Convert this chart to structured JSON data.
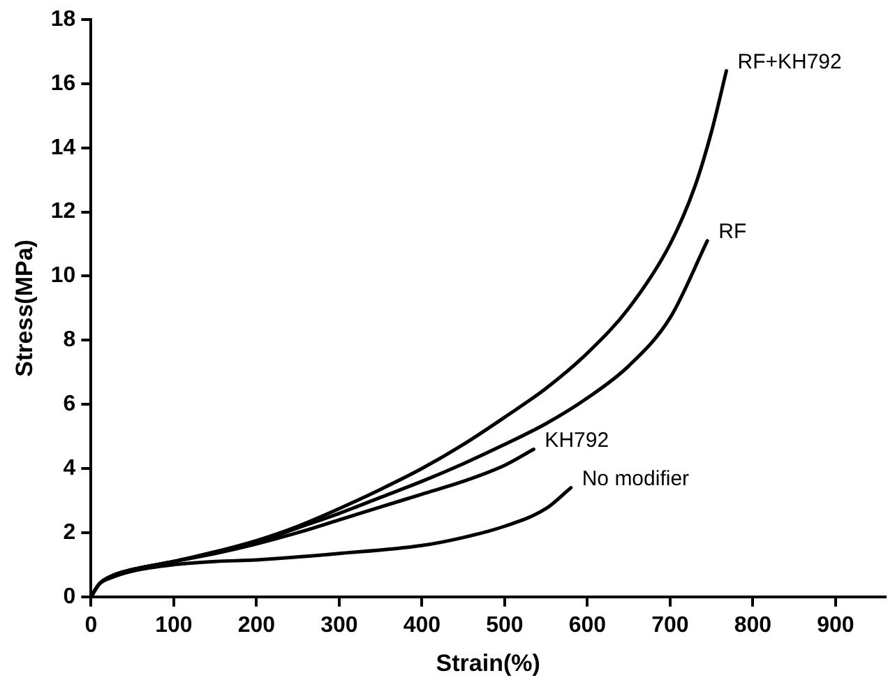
{
  "chart_data": {
    "type": "line",
    "xlabel": "Strain(%)",
    "ylabel": "Stress(MPa)",
    "xlim": [
      0,
      960
    ],
    "xticks": [
      0,
      100,
      200,
      300,
      400,
      500,
      600,
      700,
      800,
      900
    ],
    "ylim": [
      0,
      18
    ],
    "yticks": [
      0,
      2,
      4,
      6,
      8,
      10,
      12,
      14,
      16,
      18
    ],
    "grid": false,
    "legend": false,
    "marker": "none",
    "line_style": "solid",
    "series": [
      {
        "name": "RF+KH792",
        "color": "#000000",
        "x": [
          0,
          10,
          25,
          50,
          100,
          150,
          200,
          250,
          300,
          350,
          400,
          450,
          500,
          550,
          600,
          650,
          700,
          730,
          750,
          768
        ],
        "values": [
          0,
          0.4,
          0.65,
          0.85,
          1.1,
          1.4,
          1.75,
          2.2,
          2.75,
          3.35,
          4.0,
          4.75,
          5.6,
          6.5,
          7.6,
          9.0,
          11.0,
          12.8,
          14.5,
          16.4
        ]
      },
      {
        "name": "RF",
        "color": "#000000",
        "x": [
          0,
          10,
          25,
          50,
          100,
          150,
          200,
          250,
          300,
          350,
          400,
          450,
          500,
          550,
          600,
          650,
          700,
          745
        ],
        "values": [
          0,
          0.4,
          0.65,
          0.85,
          1.1,
          1.4,
          1.7,
          2.15,
          2.6,
          3.1,
          3.6,
          4.15,
          4.75,
          5.4,
          6.2,
          7.2,
          8.7,
          11.1
        ]
      },
      {
        "name": "KH792",
        "color": "#000000",
        "x": [
          0,
          10,
          25,
          50,
          100,
          150,
          200,
          250,
          300,
          350,
          400,
          450,
          500,
          535
        ],
        "values": [
          0,
          0.4,
          0.65,
          0.85,
          1.1,
          1.35,
          1.65,
          2.0,
          2.4,
          2.8,
          3.2,
          3.6,
          4.1,
          4.6
        ]
      },
      {
        "name": "No modifier",
        "color": "#000000",
        "x": [
          0,
          10,
          25,
          50,
          100,
          150,
          200,
          300,
          400,
          450,
          500,
          550,
          580
        ],
        "values": [
          0,
          0.4,
          0.6,
          0.8,
          1.0,
          1.1,
          1.15,
          1.35,
          1.6,
          1.85,
          2.2,
          2.75,
          3.4
        ]
      }
    ]
  }
}
